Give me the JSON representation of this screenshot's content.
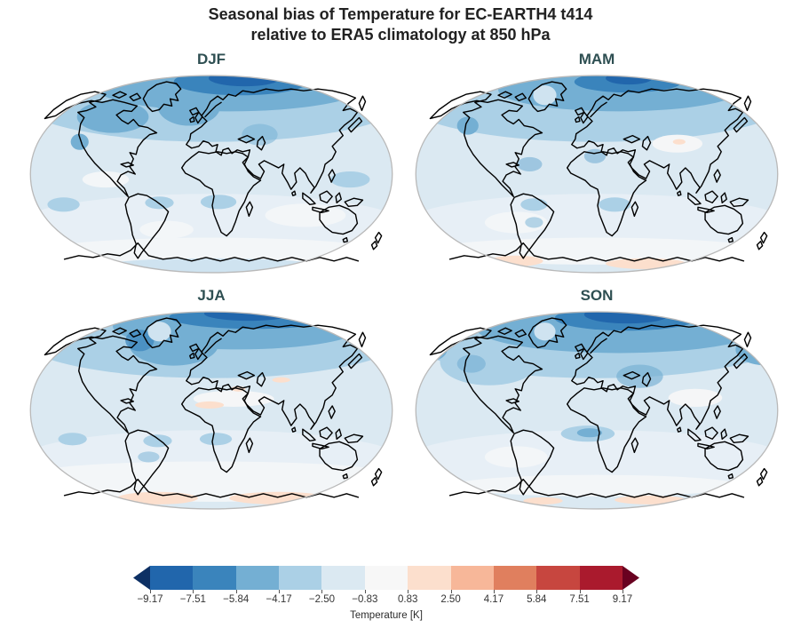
{
  "header": {
    "title_line1": "Seasonal bias of Temperature for EC-EARTH4 t414",
    "title_line2": "relative to ERA5 climatology at 850 hPa"
  },
  "chart_data": {
    "type": "heatmap",
    "title": "Seasonal bias of Temperature for EC-EARTH4 t414 relative to ERA5 climatology at 850 hPa",
    "projection": "Robinson",
    "panels": [
      "DJF",
      "MAM",
      "JJA",
      "SON"
    ],
    "variable": "Temperature bias",
    "units": "K",
    "level": "850 hPa",
    "colorbar": {
      "label": "Temperature [K]",
      "extend": "both",
      "ticks": [
        -9.17,
        -7.51,
        -5.84,
        -4.17,
        -2.5,
        -0.83,
        0.83,
        2.5,
        4.17,
        5.84,
        7.51,
        9.17
      ],
      "tick_labels": [
        "−9.17",
        "−7.51",
        "−5.84",
        "−4.17",
        "−2.50",
        "−0.83",
        "0.83",
        "2.50",
        "4.17",
        "5.84",
        "7.51",
        "9.17"
      ],
      "segment_colors": [
        "#2166ac",
        "#3a84bc",
        "#74afd3",
        "#abd0e6",
        "#dbe9f2",
        "#f7f7f7",
        "#fcdfcd",
        "#f7b799",
        "#e07f5e",
        "#c7463f",
        "#aa1a2d"
      ],
      "extend_left_color": "#0d3064",
      "extend_right_color": "#690120"
    },
    "summary": "All four seasonal panels show a predominantly negative (blue, cold) bias; the strongest cold bias (below −5.8 K) lies over the Arctic near the Barents Sea in every season, with weak positive (pale red) patches near Antarctica and in parts of the subtropics."
  },
  "colors": {
    "figure_title": "#212121",
    "panel_title": "#2e4f52",
    "map_outline": "#b9b9b9",
    "coastline": "#000000",
    "tick_text": "#333333"
  }
}
